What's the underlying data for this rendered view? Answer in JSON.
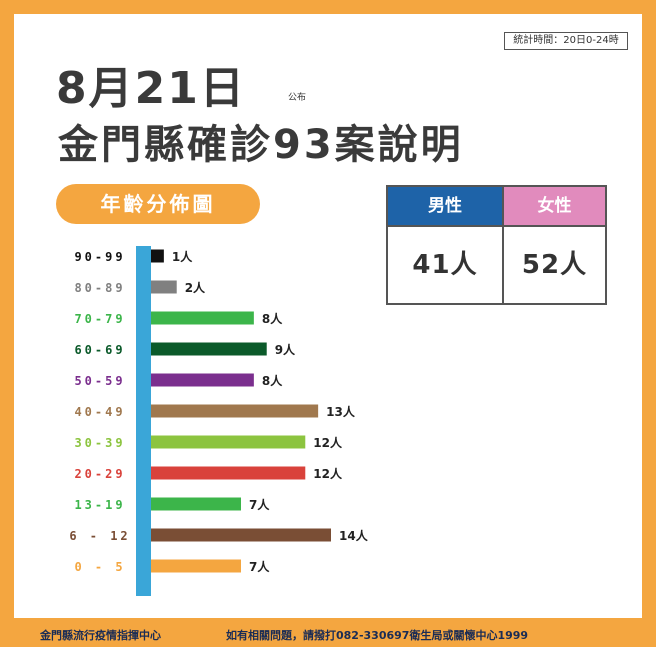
{
  "header": {
    "stat_time": "統計時間：20日0-24時",
    "date": "8月21日",
    "publish": "公布",
    "title": "金門縣確診93案說明",
    "section_label": "年齡分佈圖"
  },
  "gender": {
    "male_label": "男性",
    "male_value": "41人",
    "female_label": "女性",
    "female_value": "52人",
    "colors": {
      "male": "#1e63a8",
      "female": "#e18bbd"
    }
  },
  "chart_data": {
    "type": "bar",
    "orientation": "horizontal",
    "categories": [
      "90-99",
      "80-89",
      "70-79",
      "60-69",
      "50-59",
      "40-49",
      "30-39",
      "20-29",
      "13-19",
      "6 - 12",
      "0 - 5"
    ],
    "values": [
      1,
      2,
      8,
      9,
      8,
      13,
      12,
      12,
      7,
      14,
      7
    ],
    "data_labels": [
      "1人",
      "2人",
      "8人",
      "9人",
      "8人",
      "13人",
      "12人",
      "12人",
      "7人",
      "14人",
      "7人"
    ],
    "colors": [
      "#111111",
      "#808080",
      "#3cb54a",
      "#0b5a2a",
      "#7b2f8e",
      "#a0784e",
      "#8cc43f",
      "#d9423b",
      "#3cb54a",
      "#7a4e35",
      "#f4a640"
    ],
    "axis_color": "#3aa6d8",
    "xlim": [
      0,
      14
    ]
  },
  "footer": {
    "left": "金門縣流行疫情指揮中心",
    "right": "如有相關問題，請撥打082-330697衛生局或關懷中心1999"
  }
}
